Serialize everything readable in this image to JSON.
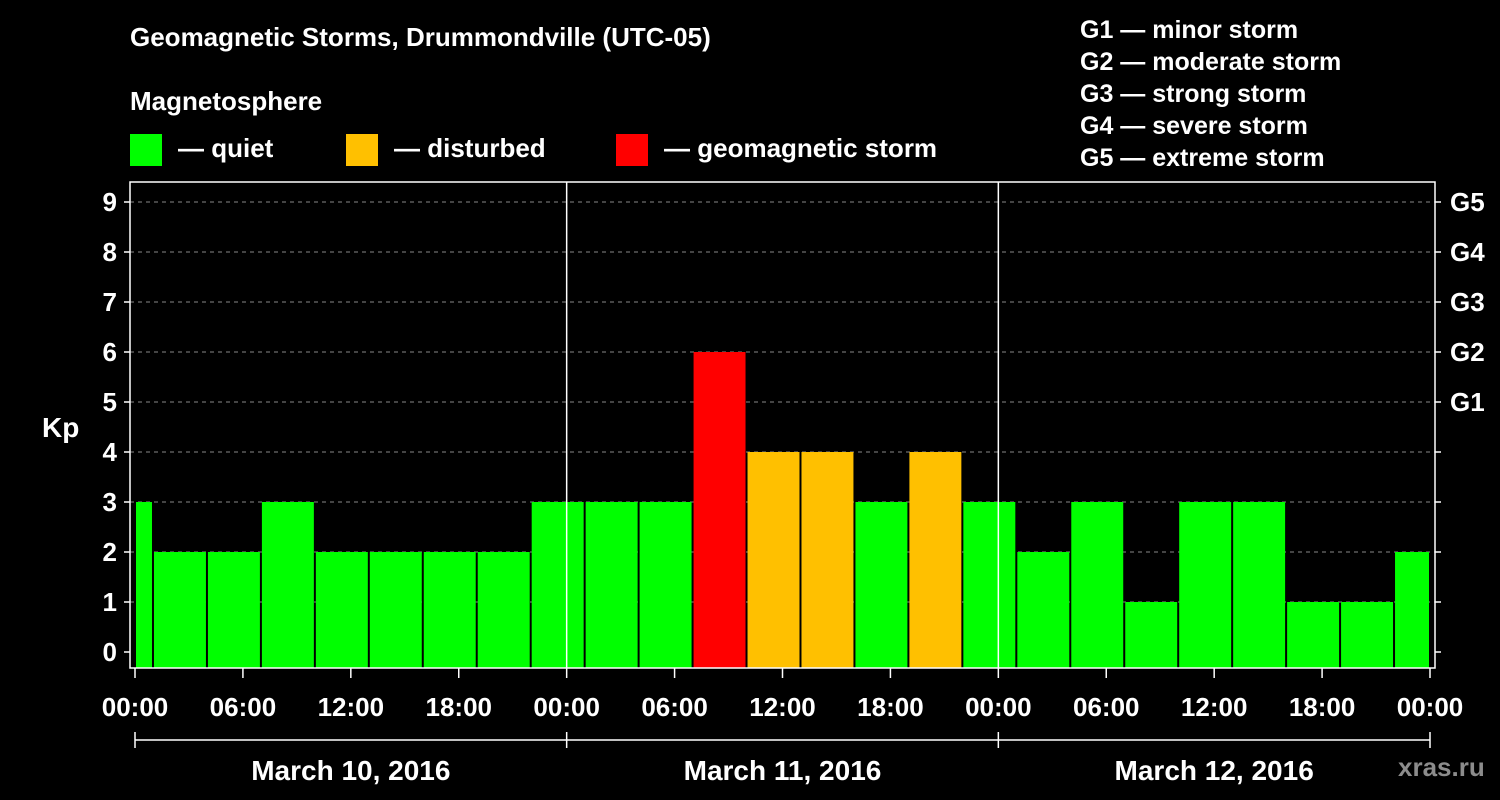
{
  "title": "Geomagnetic Storms, Drummondville (UTC-05)",
  "magnetosphere_title": "Magnetosphere",
  "legend": [
    {
      "label": "— quiet",
      "color": "#00ff00"
    },
    {
      "label": "— disturbed",
      "color": "#ffc000"
    },
    {
      "label": "— geomagnetic storm",
      "color": "#ff0000"
    }
  ],
  "storm_scale": [
    "G1 — minor storm",
    "G2 — moderate storm",
    "G3 — strong storm",
    "G4 — severe storm",
    "G5 — extreme storm"
  ],
  "watermark": "xras.ru",
  "colors": {
    "quiet": "#00ff00",
    "disturbed": "#ffc000",
    "storm": "#ff0000",
    "background": "#000000",
    "grid": "#888888"
  },
  "chart_data": {
    "type": "bar",
    "ylabel": "Kp",
    "ylim": [
      0,
      9
    ],
    "yticks": [
      "0",
      "1",
      "2",
      "3",
      "4",
      "5",
      "6",
      "7",
      "8",
      "9"
    ],
    "right_axis_labels": [
      {
        "kp": 5,
        "label": "G1"
      },
      {
        "kp": 6,
        "label": "G2"
      },
      {
        "kp": 7,
        "label": "G3"
      },
      {
        "kp": 8,
        "label": "G4"
      },
      {
        "kp": 9,
        "label": "G5"
      }
    ],
    "grid": "dashed-horizontal",
    "x_range_hours": [
      -1,
      72
    ],
    "xticks": [
      {
        "hour": 0,
        "label": "00:00"
      },
      {
        "hour": 6,
        "label": "06:00"
      },
      {
        "hour": 12,
        "label": "12:00"
      },
      {
        "hour": 18,
        "label": "18:00"
      },
      {
        "hour": 24,
        "label": "00:00"
      },
      {
        "hour": 30,
        "label": "06:00"
      },
      {
        "hour": 36,
        "label": "12:00"
      },
      {
        "hour": 42,
        "label": "18:00"
      },
      {
        "hour": 48,
        "label": "00:00"
      },
      {
        "hour": 54,
        "label": "06:00"
      },
      {
        "hour": 60,
        "label": "12:00"
      },
      {
        "hour": 66,
        "label": "18:00"
      },
      {
        "hour": 72,
        "label": "00:00"
      }
    ],
    "days": [
      {
        "label": "March 10, 2016",
        "start": 0,
        "end": 24
      },
      {
        "label": "March 11, 2016",
        "start": 24,
        "end": 48
      },
      {
        "label": "March 12, 2016",
        "start": 48,
        "end": 72
      }
    ],
    "bars": [
      {
        "start": -1,
        "end": 1,
        "kp": 3,
        "status": "quiet"
      },
      {
        "start": 1,
        "end": 4,
        "kp": 2,
        "status": "quiet"
      },
      {
        "start": 4,
        "end": 7,
        "kp": 2,
        "status": "quiet"
      },
      {
        "start": 7,
        "end": 10,
        "kp": 3,
        "status": "quiet"
      },
      {
        "start": 10,
        "end": 13,
        "kp": 2,
        "status": "quiet"
      },
      {
        "start": 13,
        "end": 16,
        "kp": 2,
        "status": "quiet"
      },
      {
        "start": 16,
        "end": 19,
        "kp": 2,
        "status": "quiet"
      },
      {
        "start": 19,
        "end": 22,
        "kp": 2,
        "status": "quiet"
      },
      {
        "start": 22,
        "end": 25,
        "kp": 3,
        "status": "quiet"
      },
      {
        "start": 25,
        "end": 28,
        "kp": 3,
        "status": "quiet"
      },
      {
        "start": 28,
        "end": 31,
        "kp": 3,
        "status": "quiet"
      },
      {
        "start": 31,
        "end": 34,
        "kp": 6,
        "status": "storm"
      },
      {
        "start": 34,
        "end": 37,
        "kp": 4,
        "status": "disturbed"
      },
      {
        "start": 37,
        "end": 40,
        "kp": 4,
        "status": "disturbed"
      },
      {
        "start": 40,
        "end": 43,
        "kp": 3,
        "status": "quiet"
      },
      {
        "start": 43,
        "end": 46,
        "kp": 4,
        "status": "disturbed"
      },
      {
        "start": 46,
        "end": 49,
        "kp": 3,
        "status": "quiet"
      },
      {
        "start": 49,
        "end": 52,
        "kp": 2,
        "status": "quiet"
      },
      {
        "start": 52,
        "end": 55,
        "kp": 3,
        "status": "quiet"
      },
      {
        "start": 55,
        "end": 58,
        "kp": 1,
        "status": "quiet"
      },
      {
        "start": 58,
        "end": 61,
        "kp": 3,
        "status": "quiet"
      },
      {
        "start": 61,
        "end": 64,
        "kp": 3,
        "status": "quiet"
      },
      {
        "start": 64,
        "end": 67,
        "kp": 1,
        "status": "quiet"
      },
      {
        "start": 67,
        "end": 70,
        "kp": 1,
        "status": "quiet"
      },
      {
        "start": 70,
        "end": 72,
        "kp": 2,
        "status": "quiet"
      }
    ]
  }
}
